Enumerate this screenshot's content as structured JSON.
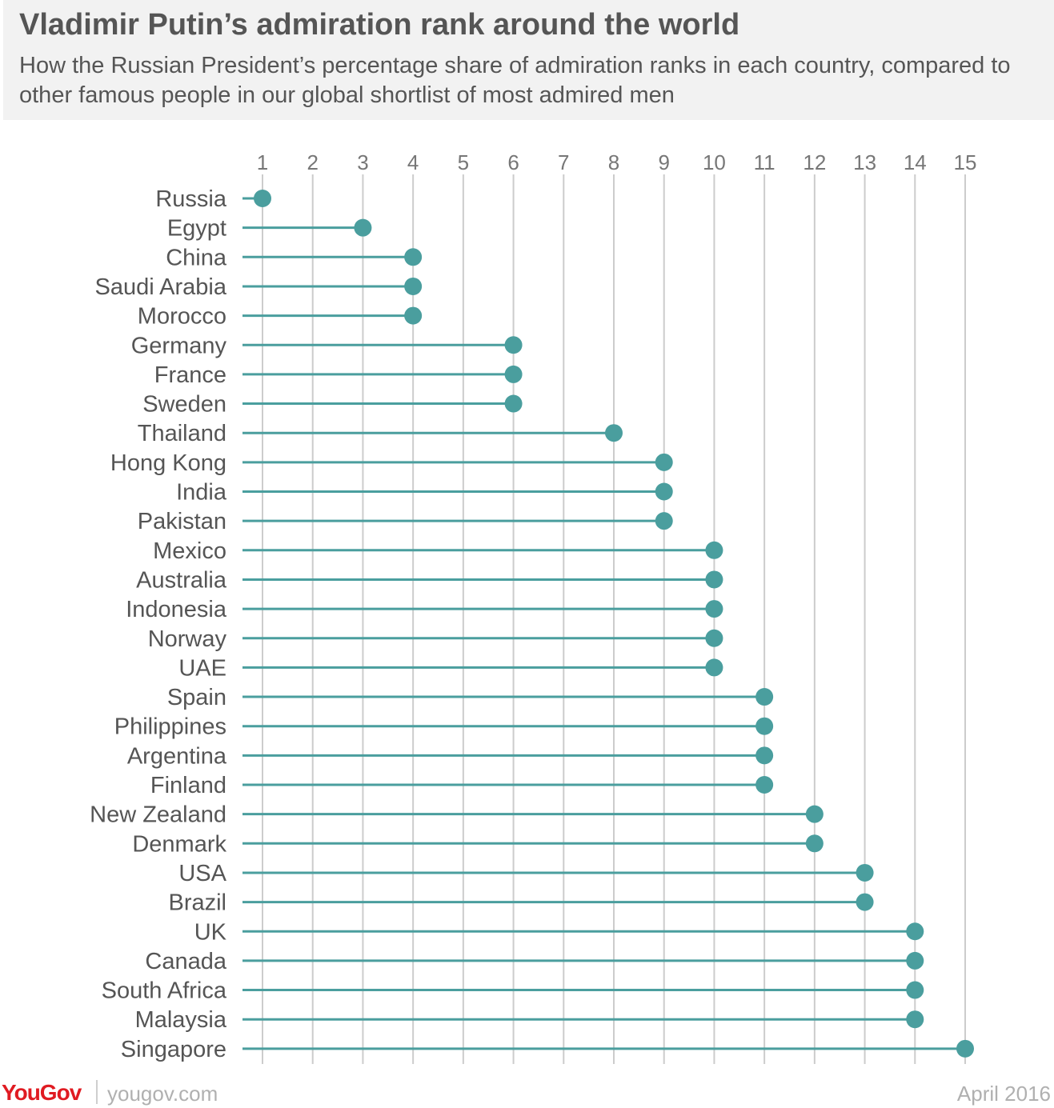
{
  "header": {
    "title": "Vladimir Putin’s admiration rank around the world",
    "subtitle": "How the Russian President’s percentage share of admiration ranks in each country, compared to other famous people in our global shortlist of most admired men"
  },
  "chart_data": {
    "type": "lollipop",
    "x_ticks": [
      1,
      2,
      3,
      4,
      5,
      6,
      7,
      8,
      9,
      10,
      11,
      12,
      13,
      14,
      15
    ],
    "xlim": [
      1,
      15
    ],
    "x_axis_position": "top",
    "grid": "vertical",
    "categories": [
      "Russia",
      "Egypt",
      "China",
      "Saudi Arabia",
      "Morocco",
      "Germany",
      "France",
      "Sweden",
      "Thailand",
      "Hong Kong",
      "India",
      "Pakistan",
      "Mexico",
      "Australia",
      "Indonesia",
      "Norway",
      "UAE",
      "Spain",
      "Philippines",
      "Argentina",
      "Finland",
      "New Zealand",
      "Denmark",
      "USA",
      "Brazil",
      "UK",
      "Canada",
      "South Africa",
      "Malaysia",
      "Singapore"
    ],
    "values": [
      1,
      3,
      4,
      4,
      4,
      6,
      6,
      6,
      8,
      9,
      9,
      9,
      10,
      10,
      10,
      10,
      10,
      11,
      11,
      11,
      11,
      12,
      12,
      13,
      13,
      14,
      14,
      14,
      14,
      15
    ],
    "color": "#4a9e9e",
    "grid_color": "#cccccc",
    "label_color": "#555555",
    "tick_color": "#777777"
  },
  "footer": {
    "brand": "YouGov",
    "brand_color": "#e01b22",
    "url": "yougov.com",
    "date": "April 2016"
  }
}
